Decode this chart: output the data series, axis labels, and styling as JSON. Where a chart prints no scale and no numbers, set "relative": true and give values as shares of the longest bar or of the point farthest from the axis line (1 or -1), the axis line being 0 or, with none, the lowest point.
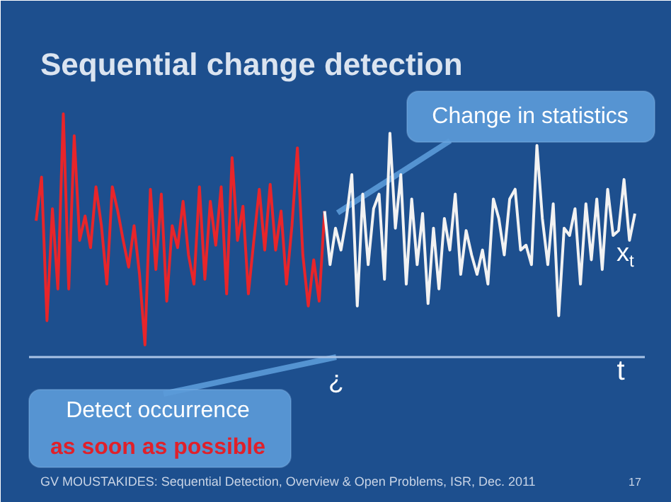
{
  "chart_data": {
    "type": "line",
    "title": "Sequential change detection",
    "xlabel": "t",
    "relative": true,
    "categories": [
      null,
      null,
      null,
      null,
      null,
      null,
      null,
      null,
      null,
      null,
      null,
      null,
      null,
      null,
      null,
      null,
      null,
      null,
      null,
      null,
      null,
      null,
      null,
      null,
      null,
      null,
      null,
      null,
      null,
      null,
      null,
      null,
      null,
      null,
      null,
      null,
      null,
      null,
      null,
      null,
      null,
      null,
      null,
      null,
      null,
      null,
      null,
      null,
      null,
      null,
      null,
      null,
      null,
      null,
      null,
      null,
      null,
      null,
      null,
      null,
      null,
      null,
      null,
      null,
      null,
      null,
      null,
      null,
      null,
      null,
      null,
      null,
      null,
      null,
      null,
      null,
      null,
      null,
      null,
      null,
      null,
      null,
      null,
      null,
      null,
      null,
      null,
      null,
      null,
      null,
      null,
      null,
      null,
      null,
      null,
      null,
      null,
      null,
      null,
      null,
      null,
      null,
      null,
      null,
      null,
      null,
      null,
      null,
      null,
      null,
      null
    ],
    "series": [
      {
        "color": "#e8252a",
        "values": [
          0.56,
          0.74,
          0.15,
          0.61,
          0.28,
          1.0,
          0.28,
          0.91,
          0.48,
          0.58,
          0.45,
          0.7,
          0.54,
          0.3,
          0.7,
          0.6,
          0.48,
          0.37,
          0.54,
          0.34,
          0.05,
          0.69,
          0.36,
          0.67,
          0.23,
          0.54,
          0.45,
          0.64,
          0.42,
          0.3,
          0.7,
          0.32,
          0.64,
          0.46,
          0.7,
          0.26,
          0.82,
          0.48,
          0.62,
          0.26,
          0.48,
          0.69,
          0.44,
          0.71,
          0.44,
          0.6,
          0.3,
          0.54,
          0.86,
          0.42,
          0.21,
          0.4,
          0.23,
          0.6,
          null,
          null,
          null,
          null,
          null,
          null,
          null,
          null,
          null,
          null,
          null,
          null,
          null,
          null,
          null,
          null,
          null,
          null,
          null,
          null,
          null,
          null,
          null,
          null,
          null,
          null,
          null,
          null,
          null,
          null,
          null,
          null,
          null,
          null,
          null,
          null,
          null,
          null,
          null,
          null,
          null,
          null,
          null,
          null,
          null,
          null,
          null,
          null,
          null,
          null,
          null,
          null,
          null,
          null,
          null,
          null,
          null
        ]
      },
      {
        "color": "#f2f2f2",
        "values": [
          null,
          null,
          null,
          null,
          null,
          null,
          null,
          null,
          null,
          null,
          null,
          null,
          null,
          null,
          null,
          null,
          null,
          null,
          null,
          null,
          null,
          null,
          null,
          null,
          null,
          null,
          null,
          null,
          null,
          null,
          null,
          null,
          null,
          null,
          null,
          null,
          null,
          null,
          null,
          null,
          null,
          null,
          null,
          null,
          null,
          null,
          null,
          null,
          null,
          null,
          null,
          null,
          null,
          0.6,
          0.38,
          0.53,
          0.44,
          0.57,
          0.75,
          0.21,
          0.67,
          0.38,
          0.61,
          0.67,
          0.32,
          0.92,
          0.53,
          0.75,
          0.3,
          0.65,
          0.38,
          0.59,
          0.22,
          0.53,
          0.28,
          0.57,
          0.44,
          0.67,
          0.34,
          0.52,
          0.42,
          0.34,
          0.44,
          0.3,
          0.65,
          0.57,
          0.42,
          0.65,
          0.69,
          0.44,
          0.46,
          0.38,
          0.87,
          0.57,
          0.38,
          0.63,
          0.17,
          0.53,
          0.5,
          0.61,
          0.3,
          0.63,
          0.4,
          0.65,
          0.36,
          0.69,
          0.5,
          0.52,
          0.73,
          0.48,
          0.59
        ]
      }
    ],
    "annotations": [
      "Change in statistics",
      "Detect occurrence",
      "as soon as possible",
      "x$_{t}$",
      "¿",
      "GV MOUSTAKIDES: Sequential Detection, Overview & Open Problems, ISR, Dec. 2011",
      "17"
    ]
  }
}
